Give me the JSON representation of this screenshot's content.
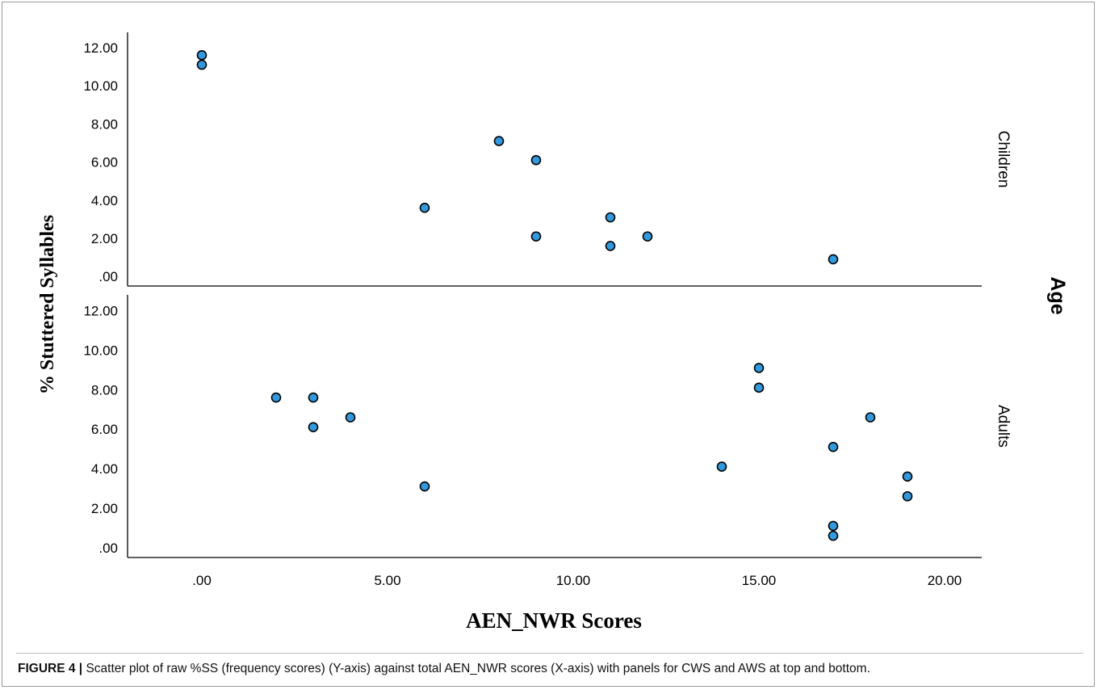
{
  "chart_data": {
    "type": "scatter",
    "xlabel": "AEN_NWR Scores",
    "ylabel": "% Stuttered Syllables",
    "facet_label": "Age",
    "xlim": [
      -2,
      21
    ],
    "x_ticks": [
      0,
      5,
      10,
      15,
      20
    ],
    "x_tick_labels": [
      ".00",
      "5.00",
      "10.00",
      "15.00",
      "20.00"
    ],
    "ylim": [
      -0.5,
      12.8
    ],
    "y_ticks": [
      0,
      2,
      4,
      6,
      8,
      10,
      12
    ],
    "y_tick_labels": [
      ".00",
      "2.00",
      "4.00",
      "6.00",
      "8.00",
      "10.00",
      "12.00"
    ],
    "grid": false,
    "marker_color": "#3399dd",
    "marker_edge": "#000000",
    "panels": [
      {
        "name": "Children",
        "points": [
          {
            "x": 0,
            "y": 11.6
          },
          {
            "x": 0,
            "y": 11.1
          },
          {
            "x": 6,
            "y": 3.6
          },
          {
            "x": 8,
            "y": 7.1
          },
          {
            "x": 9,
            "y": 6.1
          },
          {
            "x": 9,
            "y": 2.1
          },
          {
            "x": 11,
            "y": 3.1
          },
          {
            "x": 11,
            "y": 1.6
          },
          {
            "x": 12,
            "y": 2.1
          },
          {
            "x": 17,
            "y": 0.9
          }
        ]
      },
      {
        "name": "Adults",
        "points": [
          {
            "x": 2,
            "y": 7.6
          },
          {
            "x": 3,
            "y": 7.6
          },
          {
            "x": 3,
            "y": 6.1
          },
          {
            "x": 4,
            "y": 6.6
          },
          {
            "x": 6,
            "y": 3.1
          },
          {
            "x": 14,
            "y": 4.1
          },
          {
            "x": 15,
            "y": 9.1
          },
          {
            "x": 15,
            "y": 8.1
          },
          {
            "x": 17,
            "y": 5.1
          },
          {
            "x": 17,
            "y": 1.1
          },
          {
            "x": 17,
            "y": 0.6
          },
          {
            "x": 18,
            "y": 6.6
          },
          {
            "x": 19,
            "y": 3.6
          },
          {
            "x": 19,
            "y": 2.6
          }
        ]
      }
    ]
  },
  "caption": {
    "label": "FIGURE 4 |",
    "text": " Scatter plot of raw %SS (frequency scores) (Y-axis) against total AEN_NWR scores (X-axis) with panels for CWS and AWS at top and bottom."
  }
}
